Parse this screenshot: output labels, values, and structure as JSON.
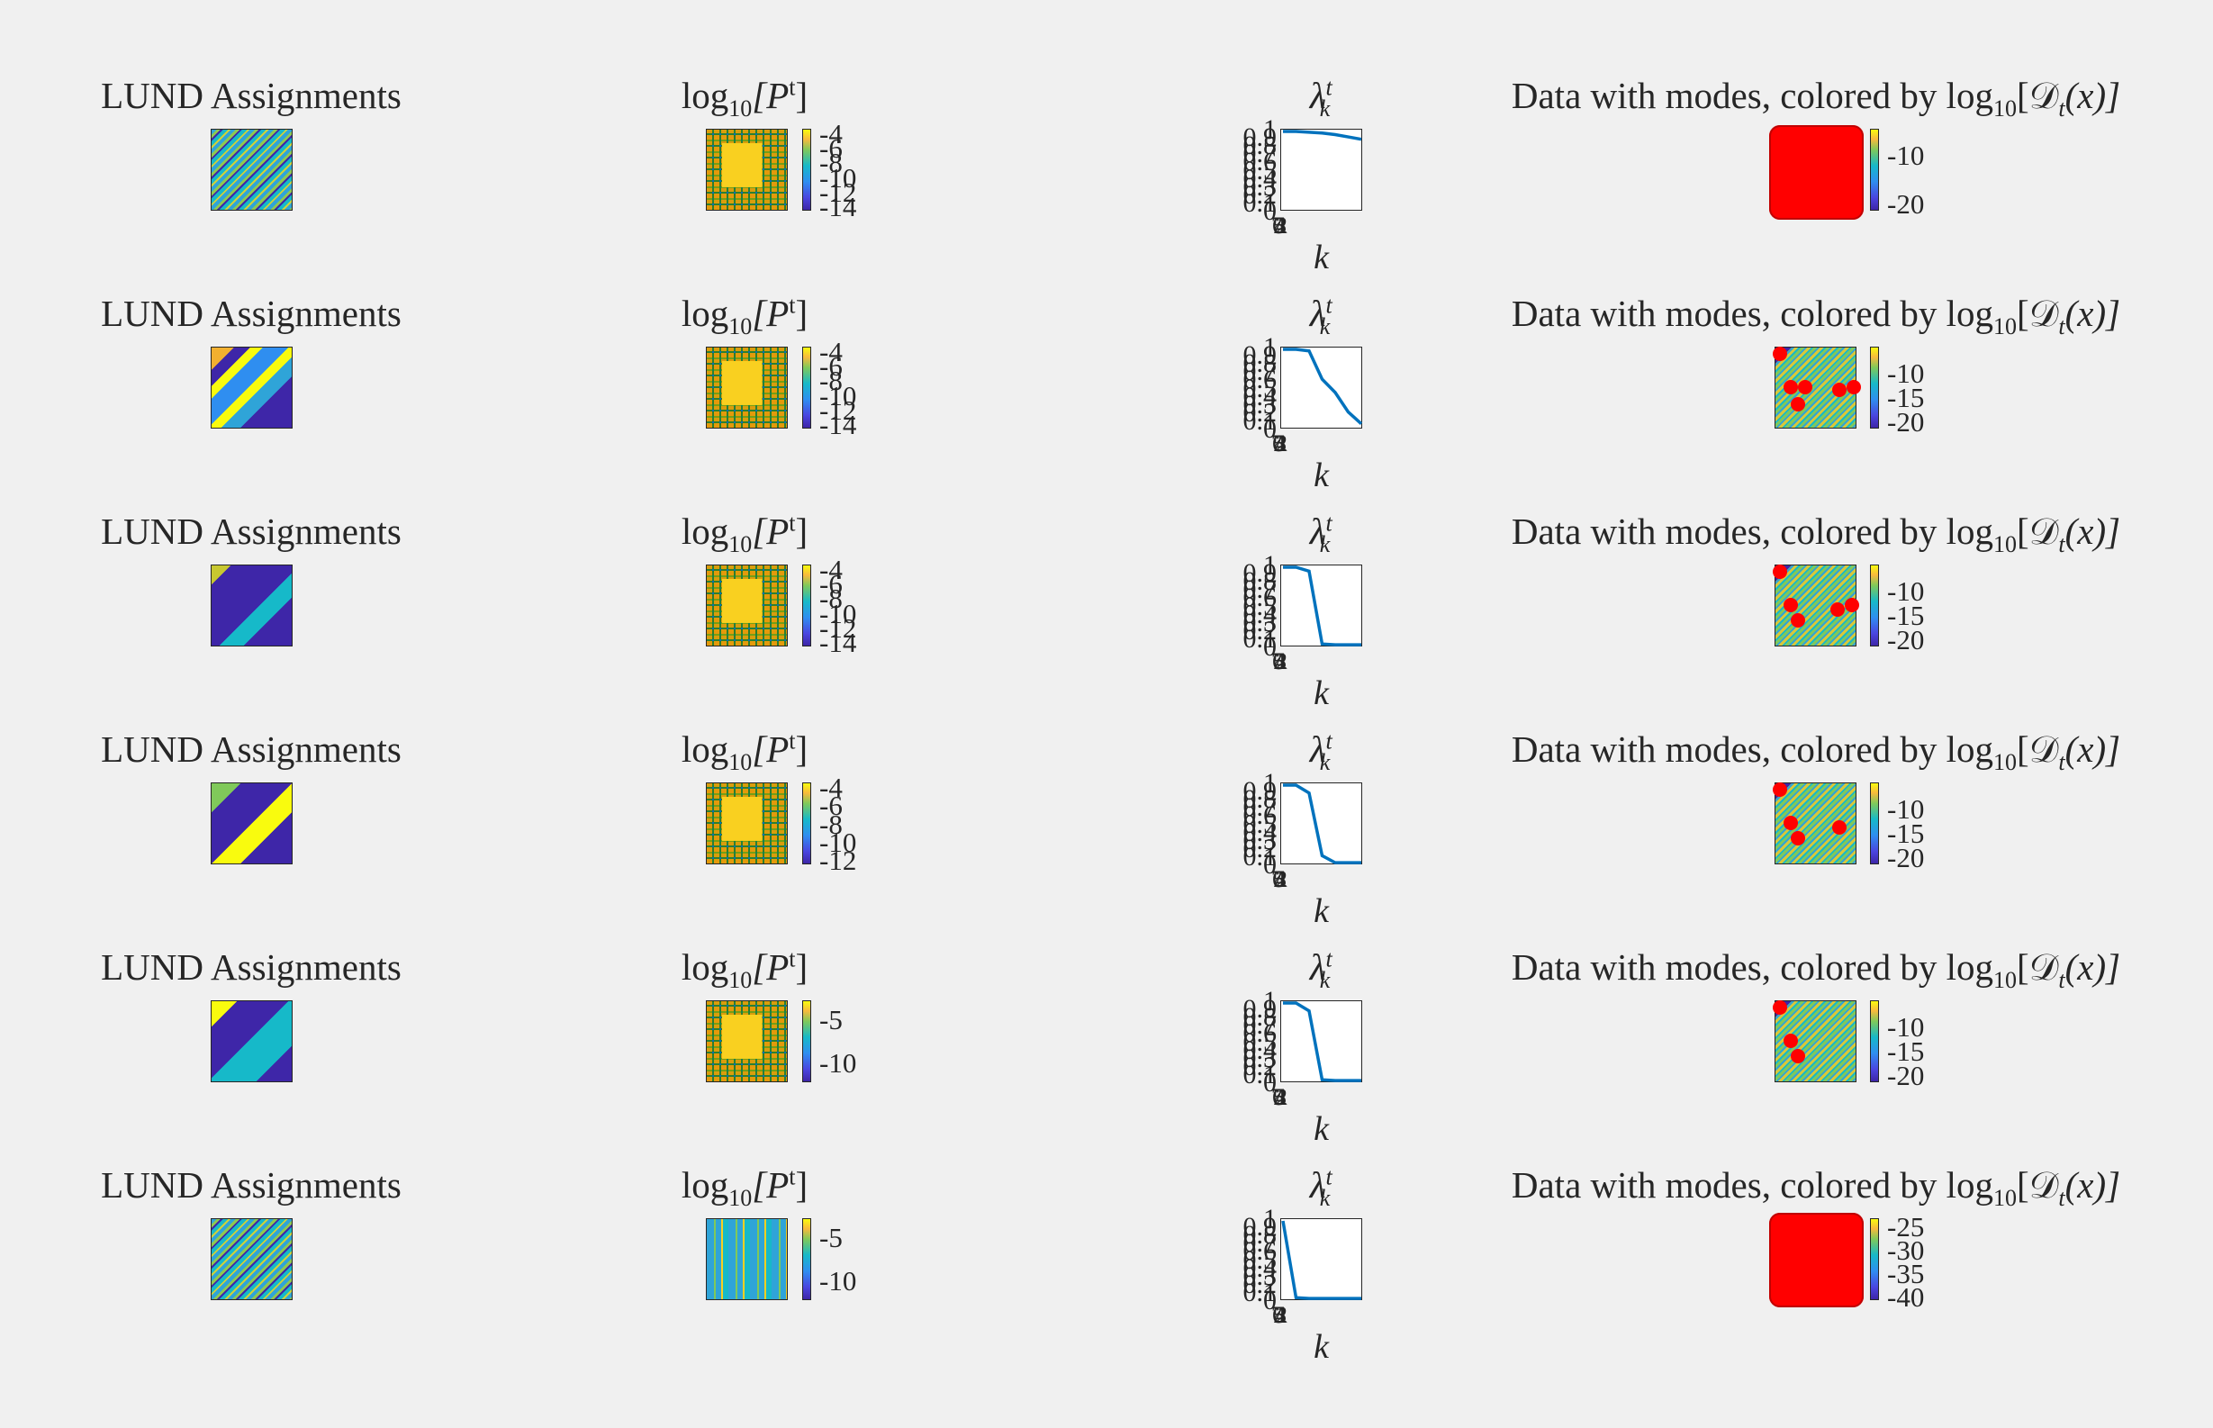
{
  "figure": {
    "rows": [
      {
        "assign_title": "LUND Assignments",
        "assign_pattern": "noisy",
        "p_title": "log",
        "p_sub": "10",
        "p_bracket": "[P",
        "p_sup": "t",
        "p_close": "]",
        "p_ticks": [
          "-4",
          "-6",
          "-8",
          "-10",
          "-12",
          "-14"
        ],
        "lambda_title": "λ",
        "lambda_sup": "t",
        "lambda_sub": "k",
        "lambda_values": [
          1.0,
          1.0,
          0.99,
          0.98,
          0.96,
          0.93,
          0.9
        ],
        "yticks": [
          "1",
          "0.9",
          "0.8",
          "0.7",
          "0.6",
          "0.5",
          "0.4",
          "0.3",
          "0.2",
          "0.1",
          "0"
        ],
        "xtick_jumble": "1234567",
        "xlabel": "k",
        "data_title": "Data with modes, colored by log",
        "data_sub": "10",
        "data_math": "[𝒟",
        "data_math_sub": "t",
        "data_close": "(x)]",
        "data_ticks": [
          "-10",
          "-20"
        ],
        "modes": "full"
      },
      {
        "assign_title": "LUND Assignments",
        "assign_pattern": "stripes",
        "p_title": "log",
        "p_sub": "10",
        "p_bracket": "[P",
        "p_sup": "t",
        "p_close": "]",
        "p_ticks": [
          "-4",
          "-6",
          "-8",
          "-10",
          "-12",
          "-14"
        ],
        "lambda_title": "λ",
        "lambda_sup": "t",
        "lambda_sub": "k",
        "lambda_values": [
          1.0,
          1.0,
          0.98,
          0.62,
          0.45,
          0.2,
          0.05
        ],
        "yticks": [
          "1",
          "0.9",
          "0.8",
          "0.7",
          "0.6",
          "0.5",
          "0.4",
          "0.3",
          "0.2",
          "0.1",
          "0"
        ],
        "xtick_jumble": "1234567",
        "xlabel": "k",
        "data_title": "Data with modes, colored by log",
        "data_sub": "10",
        "data_math": "[𝒟",
        "data_math_sub": "t",
        "data_close": "(x)]",
        "data_ticks": [
          "-10",
          "-15",
          "-20"
        ],
        "modes": "six"
      },
      {
        "assign_title": "LUND Assignments",
        "assign_pattern": "diag3",
        "p_title": "log",
        "p_sub": "10",
        "p_bracket": "[P",
        "p_sup": "t",
        "p_close": "]",
        "p_ticks": [
          "-4",
          "-6",
          "-8",
          "-10",
          "-12",
          "-14"
        ],
        "lambda_title": "λ",
        "lambda_sup": "t",
        "lambda_sub": "k",
        "lambda_values": [
          1.0,
          1.0,
          0.95,
          0.02,
          0.01,
          0.01,
          0.01
        ],
        "yticks": [
          "1",
          "0.9",
          "0.8",
          "0.7",
          "0.6",
          "0.5",
          "0.4",
          "0.3",
          "0.2",
          "0.1",
          "0"
        ],
        "xtick_jumble": "1234567",
        "xlabel": "k",
        "data_title": "Data with modes, colored by log",
        "data_sub": "10",
        "data_math": "[𝒟",
        "data_math_sub": "t",
        "data_close": "(x)]",
        "data_ticks": [
          "-10",
          "-15",
          "-20"
        ],
        "modes": "five"
      },
      {
        "assign_title": "LUND Assignments",
        "assign_pattern": "diag3b",
        "p_title": "log",
        "p_sub": "10",
        "p_bracket": "[P",
        "p_sup": "t",
        "p_close": "]",
        "p_ticks": [
          "-4",
          "-6",
          "-8",
          "-10",
          "-12"
        ],
        "lambda_title": "λ",
        "lambda_sup": "t",
        "lambda_sub": "k",
        "lambda_values": [
          1.0,
          1.0,
          0.9,
          0.1,
          0.01,
          0.01,
          0.01
        ],
        "yticks": [
          "1",
          "0.9",
          "0.8",
          "0.7",
          "0.6",
          "0.5",
          "0.4",
          "0.3",
          "0.2",
          "0.1",
          "0"
        ],
        "xtick_jumble": "1234567",
        "xlabel": "k",
        "data_title": "Data with modes, colored by log",
        "data_sub": "10",
        "data_math": "[𝒟",
        "data_math_sub": "t",
        "data_close": "(x)]",
        "data_ticks": [
          "-10",
          "-15",
          "-20"
        ],
        "modes": "four"
      },
      {
        "assign_title": "LUND Assignments",
        "assign_pattern": "diag2",
        "p_title": "log",
        "p_sub": "10",
        "p_bracket": "[P",
        "p_sup": "t",
        "p_close": "]",
        "p_ticks": [
          "-5",
          "-10"
        ],
        "lambda_title": "λ",
        "lambda_sup": "t",
        "lambda_sub": "k",
        "lambda_values": [
          1.0,
          1.0,
          0.9,
          0.02,
          0.01,
          0.01,
          0.01
        ],
        "yticks": [
          "1",
          "0.9",
          "0.8",
          "0.7",
          "0.6",
          "0.5",
          "0.4",
          "0.3",
          "0.2",
          "0.1",
          "0"
        ],
        "xtick_jumble": "1234567",
        "xlabel": "k",
        "data_title": "Data with modes, colored by log",
        "data_sub": "10",
        "data_math": "[𝒟",
        "data_math_sub": "t",
        "data_close": "(x)]",
        "data_ticks": [
          "-10",
          "-15",
          "-20"
        ],
        "modes": "three"
      },
      {
        "assign_title": "LUND Assignments",
        "assign_pattern": "noisy2",
        "p_title": "log",
        "p_sub": "10",
        "p_bracket": "[P",
        "p_sup": "t",
        "p_close": "]",
        "p_ticks": [
          "-5",
          "-10"
        ],
        "lambda_title": "λ",
        "lambda_sup": "t",
        "lambda_sub": "k",
        "lambda_values": [
          1.0,
          0.02,
          0.01,
          0.01,
          0.01,
          0.01,
          0.01
        ],
        "yticks": [
          "1",
          "0.9",
          "0.8",
          "0.7",
          "0.6",
          "0.5",
          "0.4",
          "0.3",
          "0.2",
          "0.1",
          "0"
        ],
        "xtick_jumble": "1234567",
        "xlabel": "k",
        "data_title": "Data with modes, colored by log",
        "data_sub": "10",
        "data_math": "[𝒟",
        "data_math_sub": "t",
        "data_close": "(x)]",
        "data_ticks": [
          "-25",
          "-30",
          "-35",
          "-40"
        ],
        "modes": "full"
      }
    ]
  },
  "chart_data": [
    {
      "type": "line",
      "title": "λ_k^t (row 1)",
      "xlabel": "k",
      "ylabel": "",
      "x": [
        1,
        2,
        3,
        4,
        5,
        6,
        7
      ],
      "values": [
        1.0,
        1.0,
        0.99,
        0.98,
        0.96,
        0.93,
        0.9
      ],
      "ylim": [
        0,
        1
      ]
    },
    {
      "type": "line",
      "title": "λ_k^t (row 2)",
      "xlabel": "k",
      "ylabel": "",
      "x": [
        1,
        2,
        3,
        4,
        5,
        6,
        7
      ],
      "values": [
        1.0,
        1.0,
        0.98,
        0.62,
        0.45,
        0.2,
        0.05
      ],
      "ylim": [
        0,
        1
      ]
    },
    {
      "type": "line",
      "title": "λ_k^t (row 3)",
      "xlabel": "k",
      "ylabel": "",
      "x": [
        1,
        2,
        3,
        4,
        5,
        6,
        7
      ],
      "values": [
        1.0,
        1.0,
        0.95,
        0.02,
        0.01,
        0.01,
        0.01
      ],
      "ylim": [
        0,
        1
      ]
    },
    {
      "type": "line",
      "title": "λ_k^t (row 4)",
      "xlabel": "k",
      "ylabel": "",
      "x": [
        1,
        2,
        3,
        4,
        5,
        6,
        7
      ],
      "values": [
        1.0,
        1.0,
        0.9,
        0.1,
        0.01,
        0.01,
        0.01
      ],
      "ylim": [
        0,
        1
      ]
    },
    {
      "type": "line",
      "title": "λ_k^t (row 5)",
      "xlabel": "k",
      "ylabel": "",
      "x": [
        1,
        2,
        3,
        4,
        5,
        6,
        7
      ],
      "values": [
        1.0,
        1.0,
        0.9,
        0.02,
        0.01,
        0.01,
        0.01
      ],
      "ylim": [
        0,
        1
      ]
    },
    {
      "type": "line",
      "title": "λ_k^t (row 6)",
      "xlabel": "k",
      "ylabel": "",
      "x": [
        1,
        2,
        3,
        4,
        5,
        6,
        7
      ],
      "values": [
        1.0,
        0.02,
        0.01,
        0.01,
        0.01,
        0.01,
        0.01
      ],
      "ylim": [
        0,
        1
      ]
    }
  ]
}
